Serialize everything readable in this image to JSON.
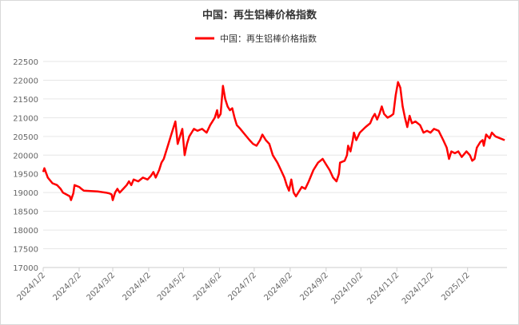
{
  "chart_data": {
    "type": "line",
    "title": "中国：再生铝棒价格指数",
    "xlabel": "",
    "ylabel": "",
    "ylim": [
      17000,
      22500
    ],
    "yticks": [
      17000,
      17500,
      18000,
      18500,
      19000,
      19500,
      20000,
      20500,
      21000,
      21500,
      22000,
      22500
    ],
    "xlim": [
      "2024-01-02",
      "2025-02-05"
    ],
    "xticks": [
      "2024/1/2",
      "2024/2/2",
      "2024/3/2",
      "2024/4/2",
      "2024/5/2",
      "2024/6/2",
      "2024/7/2",
      "2024/8/2",
      "2024/9/2",
      "2024/10/2",
      "2024/11/2",
      "2024/12/2",
      "2025/1/2"
    ],
    "grid": {
      "horizontal": true,
      "vertical": false
    },
    "legend": {
      "position": "top-center"
    },
    "series": [
      {
        "name": "中国：再生铝棒价格指数",
        "color": "#ff0000",
        "points": [
          [
            "2024-01-02",
            19550
          ],
          [
            "2024-01-03",
            19650
          ],
          [
            "2024-01-06",
            19400
          ],
          [
            "2024-01-10",
            19250
          ],
          [
            "2024-01-14",
            19200
          ],
          [
            "2024-01-17",
            19100
          ],
          [
            "2024-01-19",
            19000
          ],
          [
            "2024-01-22",
            18950
          ],
          [
            "2024-01-25",
            18900
          ],
          [
            "2024-01-26",
            18800
          ],
          [
            "2024-01-28",
            18980
          ],
          [
            "2024-01-29",
            19200
          ],
          [
            "2024-02-02",
            19150
          ],
          [
            "2024-02-04",
            19100
          ],
          [
            "2024-02-06",
            19050
          ],
          [
            "2024-02-18",
            19030
          ],
          [
            "2024-02-25",
            19000
          ],
          [
            "2024-02-28",
            18980
          ],
          [
            "2024-03-01",
            18950
          ],
          [
            "2024-03-02",
            18800
          ],
          [
            "2024-03-04",
            19000
          ],
          [
            "2024-03-06",
            19100
          ],
          [
            "2024-03-08",
            19000
          ],
          [
            "2024-03-11",
            19100
          ],
          [
            "2024-03-14",
            19200
          ],
          [
            "2024-03-16",
            19300
          ],
          [
            "2024-03-18",
            19200
          ],
          [
            "2024-03-20",
            19350
          ],
          [
            "2024-03-24",
            19300
          ],
          [
            "2024-03-28",
            19400
          ],
          [
            "2024-04-01",
            19350
          ],
          [
            "2024-04-04",
            19450
          ],
          [
            "2024-04-06",
            19550
          ],
          [
            "2024-04-08",
            19400
          ],
          [
            "2024-04-11",
            19600
          ],
          [
            "2024-04-13",
            19800
          ],
          [
            "2024-04-15",
            19900
          ],
          [
            "2024-04-17",
            20100
          ],
          [
            "2024-04-19",
            20300
          ],
          [
            "2024-04-21",
            20500
          ],
          [
            "2024-04-23",
            20700
          ],
          [
            "2024-04-25",
            20900
          ],
          [
            "2024-04-27",
            20300
          ],
          [
            "2024-04-29",
            20500
          ],
          [
            "2024-05-01",
            20700
          ],
          [
            "2024-05-03",
            20000
          ],
          [
            "2024-05-05",
            20300
          ],
          [
            "2024-05-07",
            20500
          ],
          [
            "2024-05-09",
            20600
          ],
          [
            "2024-05-11",
            20700
          ],
          [
            "2024-05-14",
            20650
          ],
          [
            "2024-05-18",
            20700
          ],
          [
            "2024-05-22",
            20600
          ],
          [
            "2024-05-25",
            20800
          ],
          [
            "2024-05-27",
            20900
          ],
          [
            "2024-05-29",
            21000
          ],
          [
            "2024-05-31",
            21200
          ],
          [
            "2024-06-01",
            21000
          ],
          [
            "2024-06-03",
            21100
          ],
          [
            "2024-06-05",
            21850
          ],
          [
            "2024-06-07",
            21500
          ],
          [
            "2024-06-09",
            21300
          ],
          [
            "2024-06-11",
            21200
          ],
          [
            "2024-06-13",
            21250
          ],
          [
            "2024-06-15",
            21000
          ],
          [
            "2024-06-17",
            20800
          ],
          [
            "2024-06-20",
            20700
          ],
          [
            "2024-06-24",
            20550
          ],
          [
            "2024-06-28",
            20400
          ],
          [
            "2024-07-01",
            20300
          ],
          [
            "2024-07-04",
            20250
          ],
          [
            "2024-07-07",
            20400
          ],
          [
            "2024-07-09",
            20550
          ],
          [
            "2024-07-12",
            20400
          ],
          [
            "2024-07-15",
            20300
          ],
          [
            "2024-07-18",
            20000
          ],
          [
            "2024-07-22",
            19800
          ],
          [
            "2024-07-25",
            19600
          ],
          [
            "2024-07-28",
            19400
          ],
          [
            "2024-07-30",
            19200
          ],
          [
            "2024-08-01",
            19050
          ],
          [
            "2024-08-03",
            19350
          ],
          [
            "2024-08-05",
            19000
          ],
          [
            "2024-08-07",
            18900
          ],
          [
            "2024-08-09",
            19000
          ],
          [
            "2024-08-12",
            19150
          ],
          [
            "2024-08-15",
            19100
          ],
          [
            "2024-08-18",
            19300
          ],
          [
            "2024-08-22",
            19600
          ],
          [
            "2024-08-26",
            19800
          ],
          [
            "2024-08-30",
            19900
          ],
          [
            "2024-09-02",
            19750
          ],
          [
            "2024-09-05",
            19600
          ],
          [
            "2024-09-08",
            19400
          ],
          [
            "2024-09-11",
            19300
          ],
          [
            "2024-09-13",
            19500
          ],
          [
            "2024-09-14",
            19800
          ],
          [
            "2024-09-18",
            19850
          ],
          [
            "2024-09-20",
            20000
          ],
          [
            "2024-09-21",
            20250
          ],
          [
            "2024-09-23",
            20100
          ],
          [
            "2024-09-25",
            20400
          ],
          [
            "2024-09-26",
            20600
          ],
          [
            "2024-09-28",
            20400
          ],
          [
            "2024-10-01",
            20600
          ],
          [
            "2024-10-06",
            20750
          ],
          [
            "2024-10-10",
            20850
          ],
          [
            "2024-10-12",
            21000
          ],
          [
            "2024-10-14",
            21100
          ],
          [
            "2024-10-16",
            20950
          ],
          [
            "2024-10-18",
            21100
          ],
          [
            "2024-10-20",
            21300
          ],
          [
            "2024-10-22",
            21100
          ],
          [
            "2024-10-25",
            21000
          ],
          [
            "2024-10-28",
            21050
          ],
          [
            "2024-10-30",
            21100
          ],
          [
            "2024-11-01",
            21600
          ],
          [
            "2024-11-03",
            21950
          ],
          [
            "2024-11-05",
            21800
          ],
          [
            "2024-11-07",
            21300
          ],
          [
            "2024-11-09",
            21000
          ],
          [
            "2024-11-11",
            20750
          ],
          [
            "2024-11-13",
            21050
          ],
          [
            "2024-11-15",
            20850
          ],
          [
            "2024-11-18",
            20900
          ],
          [
            "2024-11-22",
            20800
          ],
          [
            "2024-11-25",
            20600
          ],
          [
            "2024-11-28",
            20650
          ],
          [
            "2024-12-01",
            20600
          ],
          [
            "2024-12-04",
            20700
          ],
          [
            "2024-12-08",
            20650
          ],
          [
            "2024-12-12",
            20400
          ],
          [
            "2024-12-15",
            20200
          ],
          [
            "2024-12-17",
            19900
          ],
          [
            "2024-12-19",
            20100
          ],
          [
            "2024-12-22",
            20050
          ],
          [
            "2024-12-25",
            20100
          ],
          [
            "2024-12-28",
            19950
          ],
          [
            "2025-01-01",
            20100
          ],
          [
            "2025-01-04",
            20000
          ],
          [
            "2025-01-06",
            19850
          ],
          [
            "2025-01-08",
            19900
          ],
          [
            "2025-01-10",
            20200
          ],
          [
            "2025-01-13",
            20350
          ],
          [
            "2025-01-15",
            20400
          ],
          [
            "2025-01-16",
            20250
          ],
          [
            "2025-01-18",
            20550
          ],
          [
            "2025-01-21",
            20450
          ],
          [
            "2025-01-23",
            20600
          ],
          [
            "2025-01-26",
            20500
          ],
          [
            "2025-01-30",
            20450
          ],
          [
            "2025-02-03",
            20400
          ]
        ]
      }
    ]
  }
}
